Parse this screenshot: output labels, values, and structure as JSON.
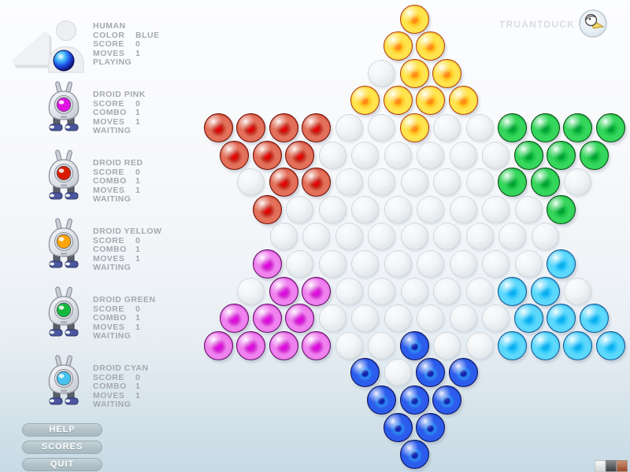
{
  "header": {
    "brand": "TRUANTDUCK",
    "logo_icon": "duck-in-circle"
  },
  "players": [
    {
      "name": "HUMAN",
      "icon": "human-avatar",
      "eye": "#2b5ce8",
      "rows": [
        {
          "label": "COLOR",
          "value": "BLUE"
        },
        {
          "label": "SCORE",
          "value": "0"
        },
        {
          "label": "MOVES",
          "value": "1"
        }
      ],
      "status": "PLAYING"
    },
    {
      "name": "DROID PINK",
      "icon": "droid",
      "eye": "#e012e0",
      "rows": [
        {
          "label": "SCORE",
          "value": "0"
        },
        {
          "label": "COMBO",
          "value": "1"
        },
        {
          "label": "MOVES",
          "value": "1"
        }
      ],
      "status": "WAITING"
    },
    {
      "name": "DROID RED",
      "icon": "droid",
      "eye": "#da1b00",
      "rows": [
        {
          "label": "SCORE",
          "value": "0"
        },
        {
          "label": "COMBO",
          "value": "1"
        },
        {
          "label": "MOVES",
          "value": "1"
        }
      ],
      "status": "WAITING"
    },
    {
      "name": "DROID YELLOW",
      "icon": "droid",
      "eye": "#ffa50a",
      "rows": [
        {
          "label": "SCORE",
          "value": "0"
        },
        {
          "label": "COMBO",
          "value": "1"
        },
        {
          "label": "MOVES",
          "value": "1"
        }
      ],
      "status": "WAITING"
    },
    {
      "name": "DROID GREEN",
      "icon": "droid",
      "eye": "#14b83c",
      "rows": [
        {
          "label": "SCORE",
          "value": "0"
        },
        {
          "label": "COMBO",
          "value": "1"
        },
        {
          "label": "MOVES",
          "value": "1"
        }
      ],
      "status": "WAITING"
    },
    {
      "name": "DROID CYAN",
      "icon": "droid",
      "eye": "#46c2ee",
      "rows": [
        {
          "label": "SCORE",
          "value": "0"
        },
        {
          "label": "COMBO",
          "value": "1"
        },
        {
          "label": "MOVES",
          "value": "1"
        }
      ],
      "status": "WAITING"
    }
  ],
  "buttons": [
    {
      "label": "HELP"
    },
    {
      "label": "SCORES"
    },
    {
      "label": "QUIT"
    }
  ],
  "palette": {
    "swatches": [
      "#f1f4f6",
      "#45484a",
      "#b0552d"
    ]
  },
  "board": {
    "row_lengths": [
      1,
      2,
      3,
      4,
      13,
      12,
      11,
      10,
      9,
      10,
      11,
      12,
      13,
      4,
      3,
      2,
      1
    ],
    "marbles": {
      "yellow": [
        [
          1,
          1
        ],
        [
          2,
          1
        ],
        [
          2,
          2
        ],
        [
          3,
          2
        ],
        [
          3,
          3
        ],
        [
          4,
          1
        ],
        [
          4,
          2
        ],
        [
          4,
          3
        ],
        [
          4,
          4
        ],
        [
          5,
          7
        ]
      ],
      "red": [
        [
          5,
          1
        ],
        [
          5,
          2
        ],
        [
          5,
          3
        ],
        [
          5,
          4
        ],
        [
          6,
          1
        ],
        [
          6,
          2
        ],
        [
          6,
          3
        ],
        [
          7,
          2
        ],
        [
          7,
          3
        ],
        [
          8,
          1
        ]
      ],
      "green": [
        [
          5,
          10
        ],
        [
          5,
          11
        ],
        [
          5,
          12
        ],
        [
          5,
          13
        ],
        [
          6,
          10
        ],
        [
          6,
          11
        ],
        [
          6,
          12
        ],
        [
          7,
          9
        ],
        [
          7,
          10
        ],
        [
          8,
          10
        ]
      ],
      "pink": [
        [
          10,
          1
        ],
        [
          11,
          2
        ],
        [
          11,
          3
        ],
        [
          12,
          1
        ],
        [
          12,
          2
        ],
        [
          12,
          3
        ],
        [
          13,
          1
        ],
        [
          13,
          2
        ],
        [
          13,
          3
        ],
        [
          13,
          4
        ]
      ],
      "cyan": [
        [
          10,
          10
        ],
        [
          11,
          9
        ],
        [
          11,
          10
        ],
        [
          12,
          10
        ],
        [
          12,
          11
        ],
        [
          12,
          12
        ],
        [
          13,
          10
        ],
        [
          13,
          11
        ],
        [
          13,
          12
        ],
        [
          13,
          13
        ]
      ],
      "blue": [
        [
          13,
          7
        ],
        [
          14,
          1
        ],
        [
          14,
          3
        ],
        [
          14,
          4
        ],
        [
          15,
          1
        ],
        [
          15,
          2
        ],
        [
          15,
          3
        ],
        [
          16,
          1
        ],
        [
          16,
          2
        ],
        [
          17,
          1
        ]
      ]
    },
    "marble_styles": {
      "yellow": {
        "core": "#ff8d12",
        "mid": "#ffc41e",
        "body": "#ffe44e",
        "rim": "#f29e1e",
        "edge": "#b23b00"
      },
      "red": {
        "core": "#e30505",
        "mid": "#c02c1c",
        "body": "#e2705a",
        "rim": "#a81505",
        "edge": "#6f0a00"
      },
      "green": {
        "core": "#00a433",
        "mid": "#15bd42",
        "body": "#35d65c",
        "rim": "#0a8f2b",
        "edge": "#05480f"
      },
      "pink": {
        "core": "#de0ade",
        "mid": "#cf2ccf",
        "body": "#ef82ef",
        "rim": "#b414b4",
        "edge": "#5f075f"
      },
      "cyan": {
        "core": "#09aeef",
        "mid": "#27c3f8",
        "body": "#5cd8fc",
        "rim": "#0f86cf",
        "edge": "#0a5591"
      },
      "blue": {
        "core": "#1223b0",
        "mid": "#2e8cf2",
        "body": "#2b5cec",
        "rim": "#162f9e",
        "edge": "#0d0d55"
      }
    }
  }
}
